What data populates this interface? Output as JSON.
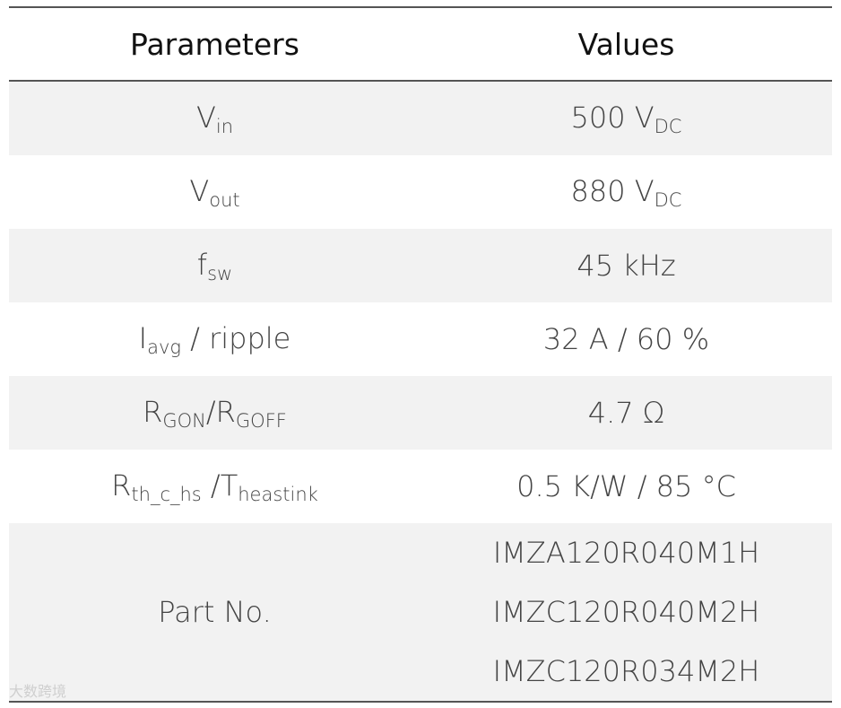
{
  "table": {
    "header": [
      "Parameters",
      "Values"
    ],
    "rows": [
      [
        [
          {
            "text": "V"
          },
          {
            "sub": "in"
          }
        ],
        [
          {
            "text": "500 V"
          },
          {
            "sub": "DC"
          }
        ]
      ],
      [
        [
          {
            "text": "V"
          },
          {
            "sub": "out"
          }
        ],
        [
          {
            "text": "880 V"
          },
          {
            "sub": "DC"
          }
        ]
      ],
      [
        [
          {
            "text": "f"
          },
          {
            "sub": "sw"
          }
        ],
        [
          {
            "text": "45 kHz"
          }
        ]
      ],
      [
        [
          {
            "text": "I"
          },
          {
            "sub": "avg"
          },
          {
            "text": " / ripple"
          }
        ],
        [
          {
            "text": "32 A / 60 %"
          }
        ]
      ],
      [
        [
          {
            "text": "R"
          },
          {
            "sub": "GON"
          },
          {
            "text": "/R"
          },
          {
            "sub": "GOFF"
          }
        ],
        [
          {
            "text": "4.7 Ω"
          }
        ]
      ],
      [
        [
          {
            "text": "R"
          },
          {
            "sub": "th_c_hs"
          },
          {
            "text": " /"
          },
          {
            "text": "T"
          },
          {
            "sub": "heastink"
          }
        ],
        [
          {
            "text": "0.5 K/W / 85 °C"
          }
        ]
      ],
      [
        [
          {
            "text": "Part No."
          }
        ],
        {
          "lines": [
            "IMZA120R040M1H",
            "IMZC120R040M2H",
            "IMZC120R034M2H"
          ]
        }
      ]
    ]
  },
  "watermark": "大数跨境"
}
